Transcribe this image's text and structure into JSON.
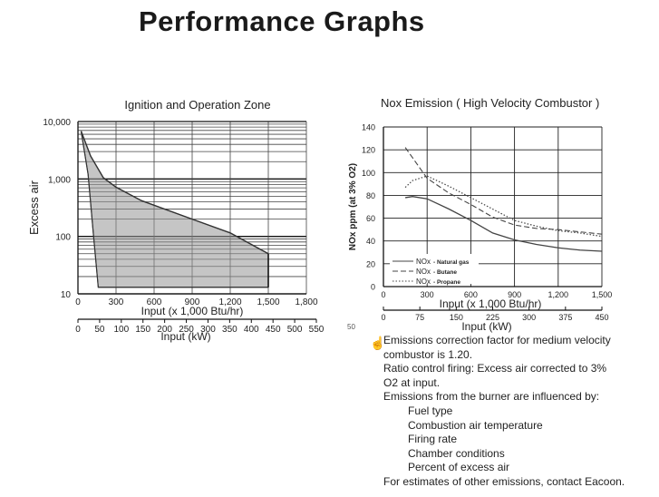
{
  "page": {
    "title": "Performance Graphs",
    "stray_mark": "50"
  },
  "chart_data": [
    {
      "type": "area",
      "title": "Ignition and Operation Zone",
      "xlabel": "Input (x 1,000 Btu/hr)",
      "x2label": "Input (kW)",
      "ylabel": "Excess air",
      "yscale": "log",
      "ylim": [
        10,
        10000
      ],
      "xlim": [
        0,
        1800
      ],
      "x2lim": [
        0,
        550
      ],
      "x_ticks": [
        "0",
        "300",
        "600",
        "900",
        "1,200",
        "1,500",
        "1,800"
      ],
      "x_tick_values": [
        0,
        300,
        600,
        900,
        1200,
        1500,
        1800
      ],
      "x2_ticks": [
        "0",
        "50",
        "100",
        "150",
        "200",
        "250",
        "300",
        "350",
        "400",
        "450",
        "500",
        "550"
      ],
      "x2_tick_values": [
        0,
        50,
        100,
        150,
        200,
        250,
        300,
        350,
        400,
        450,
        500,
        550
      ],
      "y_ticks": [
        "10,000",
        "1,000",
        "100",
        "10"
      ],
      "y_tick_values": [
        10000,
        1000,
        100,
        10
      ],
      "zone_upper": [
        [
          25,
          6800
        ],
        [
          100,
          2500
        ],
        [
          200,
          1050
        ],
        [
          300,
          720
        ],
        [
          500,
          420
        ],
        [
          900,
          200
        ],
        [
          1200,
          115
        ],
        [
          1500,
          50
        ]
      ],
      "zone_lower": [
        [
          25,
          6800
        ],
        [
          80,
          1200
        ],
        [
          120,
          120
        ],
        [
          160,
          13
        ],
        [
          1500,
          13
        ]
      ],
      "zone_right_edge": [
        [
          1500,
          13
        ],
        [
          1500,
          50
        ]
      ]
    },
    {
      "type": "line",
      "title": "Nox Emission  ( High Velocity Combustor )",
      "xlabel": "Input (x 1,000 Btu/hr)",
      "x2label": "Input (kW)",
      "ylabel": "NOx ppm (at 3% O2)",
      "xlim": [
        0,
        1500
      ],
      "ylim": [
        0,
        140
      ],
      "x2lim": [
        0,
        450
      ],
      "x_ticks": [
        "0",
        "300",
        "600",
        "900",
        "1,200",
        "1,500"
      ],
      "x_tick_values": [
        0,
        300,
        600,
        900,
        1200,
        1500
      ],
      "x2_ticks": [
        "0",
        "75",
        "150",
        "225",
        "300",
        "375",
        "450"
      ],
      "x2_tick_values": [
        0,
        75,
        150,
        225,
        300,
        375,
        450
      ],
      "y_ticks": [
        "0",
        "20",
        "40",
        "60",
        "80",
        "100",
        "120",
        "140"
      ],
      "y_tick_values": [
        0,
        20,
        40,
        60,
        80,
        100,
        120,
        140
      ],
      "legend_position": "bottom-left",
      "series": [
        {
          "name": "NOx - Natural gas",
          "prefix": "NOx",
          "label": "- Natural gas",
          "style": "solid",
          "x": [
            150,
            200,
            300,
            450,
            600,
            750,
            900,
            1050,
            1200,
            1350,
            1500
          ],
          "y": [
            78,
            79,
            77,
            68,
            58,
            47,
            41,
            37,
            34,
            32,
            31
          ]
        },
        {
          "name": "NOx - Butane",
          "prefix": "NOx",
          "label": "- Butane",
          "style": "dashed",
          "x": [
            150,
            300,
            450,
            600,
            750,
            900,
            1050,
            1200,
            1350,
            1500
          ],
          "y": [
            122,
            95,
            82,
            72,
            61,
            54,
            51,
            50,
            48,
            46
          ]
        },
        {
          "name": "NOx - Propane",
          "prefix": "NOx",
          "label": "- Propane",
          "style": "dotted",
          "x": [
            150,
            200,
            300,
            450,
            600,
            750,
            900,
            1050,
            1200,
            1350,
            1500
          ],
          "y": [
            87,
            93,
            97,
            88,
            78,
            68,
            58,
            53,
            49,
            47,
            44
          ]
        }
      ]
    }
  ],
  "notes": {
    "line1": "Emissions correction factor for medium velocity",
    "line2": "combustor is 1.20.",
    "line3": "Ratio control firing: Excess air corrected to 3%",
    "line4": "O2 at input.",
    "line5": "Emissions from the burner are influenced by:",
    "factors": [
      "Fuel type",
      "Combustion air temperature",
      "Firing rate",
      "Chamber conditions",
      "Percent of excess air"
    ],
    "closing": "For estimates of other emissions, contact Eacoon."
  }
}
